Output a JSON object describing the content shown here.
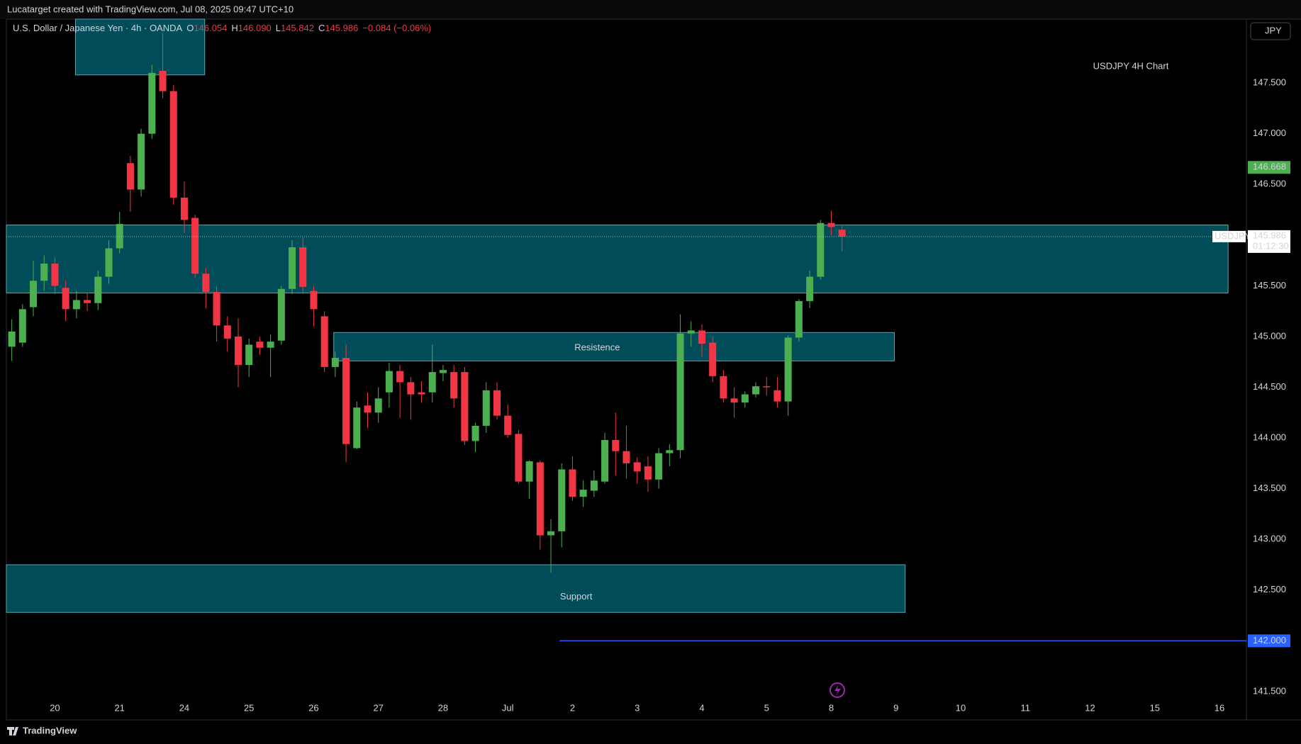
{
  "chart_data": {
    "type": "candlestick",
    "attribution": "Lucatarget created with TradingView.com, Jul 08, 2025 09:47 UTC+10",
    "symbol": "U.S. Dollar / Japanese Yen · 4h · OANDA",
    "ohlc_header": [
      {
        "key": "O",
        "value": "146.054"
      },
      {
        "key": "H",
        "value": "146.090"
      },
      {
        "key": "L",
        "value": "145.842"
      },
      {
        "key": "C",
        "value": "145.986"
      }
    ],
    "change": "−0.084 (−0.06%)",
    "currency_button": "JPY",
    "title": "USDJPY 4H Chart",
    "brand": "TradingView",
    "up_color": "#4caf50",
    "down_color": "#f23645",
    "grid": false,
    "categories": [
      null,
      null,
      null,
      null,
      "20",
      null,
      null,
      null,
      null,
      null,
      "21",
      null,
      null,
      null,
      null,
      null,
      "24",
      null,
      null,
      null,
      null,
      null,
      "25",
      null,
      null,
      null,
      null,
      null,
      "26",
      null,
      null,
      null,
      null,
      null,
      "27",
      null,
      null,
      null,
      null,
      null,
      "28",
      null,
      null,
      null,
      null,
      null,
      "Jul",
      null,
      null,
      null,
      null,
      null,
      "2",
      null,
      null,
      null,
      null,
      null,
      "3",
      null,
      null,
      null,
      null,
      null,
      "4",
      null,
      null,
      null,
      null,
      null,
      "5",
      null,
      null,
      null,
      null,
      null,
      "8",
      null,
      null,
      null,
      null,
      null,
      "9",
      null,
      null,
      null,
      null,
      null,
      "10",
      null,
      null,
      null,
      null,
      null,
      "11",
      null,
      null,
      null,
      null,
      null,
      "12",
      null,
      null,
      null,
      null,
      null,
      "15",
      null,
      null,
      null,
      null,
      null,
      "16",
      null,
      null
    ],
    "open": [
      144.9,
      144.94,
      145.29,
      145.55,
      145.72,
      145.48,
      145.27,
      145.36,
      145.33,
      145.59,
      145.87,
      146.71,
      146.45,
      147.0,
      147.62,
      147.42,
      146.37,
      146.17,
      145.62,
      145.44,
      145.11,
      145.0,
      144.72,
      144.95,
      144.89,
      144.96,
      145.47,
      145.88,
      145.45,
      145.2,
      144.7,
      144.79,
      143.9,
      144.32,
      144.25,
      144.45,
      144.66,
      144.55,
      144.45,
      144.45,
      144.64,
      144.65,
      144.65,
      143.97,
      144.12,
      144.47,
      144.22,
      144.04,
      143.57,
      143.76,
      143.04,
      143.08,
      143.69,
      143.42,
      143.48,
      143.57,
      143.98,
      143.87,
      143.76,
      143.72,
      143.59,
      143.85,
      143.88,
      145.03,
      145.06,
      144.94,
      144.61,
      144.39,
      144.35,
      144.43,
      144.51,
      144.47,
      144.36,
      144.99,
      145.35,
      145.59,
      146.12,
      146.054,
      null,
      null,
      null,
      null,
      null,
      null,
      null,
      null,
      null,
      null,
      null,
      null,
      null,
      null,
      null,
      null,
      null,
      null,
      null,
      null,
      null,
      null,
      null,
      null,
      null,
      null,
      null,
      null,
      null,
      null,
      null,
      null,
      null,
      null,
      null,
      null,
      null
    ],
    "high": [
      145.17,
      145.32,
      145.75,
      145.8,
      145.78,
      145.55,
      145.45,
      145.43,
      145.65,
      145.95,
      146.23,
      146.78,
      147.05,
      147.68,
      147.99,
      147.48,
      146.53,
      146.2,
      145.68,
      145.5,
      145.2,
      145.18,
      144.98,
      145.0,
      145.02,
      145.5,
      145.95,
      145.98,
      145.5,
      145.25,
      144.85,
      144.92,
      144.36,
      144.45,
      144.5,
      144.74,
      144.72,
      144.6,
      144.56,
      144.92,
      144.72,
      144.72,
      144.7,
      144.15,
      144.55,
      144.55,
      144.33,
      144.08,
      143.78,
      143.78,
      143.2,
      143.75,
      143.82,
      143.58,
      143.68,
      144.05,
      144.25,
      144.12,
      143.81,
      143.82,
      143.9,
      143.94,
      145.22,
      145.15,
      145.12,
      145.0,
      144.67,
      144.5,
      144.46,
      144.55,
      144.6,
      144.6,
      145.01,
      145.37,
      145.65,
      146.15,
      146.24,
      146.09,
      null,
      null,
      null,
      null,
      null,
      null,
      null,
      null,
      null,
      null,
      null,
      null,
      null,
      null,
      null,
      null,
      null,
      null,
      null,
      null,
      null,
      null,
      null,
      null,
      null,
      null,
      null,
      null,
      null,
      null,
      null,
      null,
      null,
      null,
      null,
      null,
      null
    ],
    "low": [
      144.76,
      144.9,
      145.2,
      145.45,
      145.42,
      145.15,
      145.18,
      145.25,
      145.26,
      145.52,
      145.82,
      146.23,
      146.38,
      146.95,
      147.35,
      146.3,
      146.02,
      145.58,
      145.28,
      144.95,
      144.85,
      144.5,
      144.6,
      144.82,
      144.6,
      144.92,
      145.42,
      145.42,
      145.1,
      144.65,
      144.6,
      143.76,
      143.89,
      144.1,
      144.15,
      144.3,
      144.2,
      144.18,
      144.35,
      144.35,
      144.56,
      144.3,
      143.93,
      143.86,
      144.05,
      144.18,
      144.0,
      143.55,
      143.4,
      142.9,
      142.67,
      142.92,
      143.38,
      143.32,
      143.42,
      143.55,
      143.63,
      143.6,
      143.55,
      143.47,
      143.5,
      143.72,
      143.8,
      144.9,
      144.8,
      144.55,
      144.35,
      144.2,
      144.3,
      144.4,
      144.42,
      144.3,
      144.22,
      144.95,
      145.28,
      145.56,
      146.0,
      145.842,
      null,
      null,
      null,
      null,
      null,
      null,
      null,
      null,
      null,
      null,
      null,
      null,
      null,
      null,
      null,
      null,
      null,
      null,
      null,
      null,
      null,
      null,
      null,
      null,
      null,
      null,
      null,
      null,
      null,
      null,
      null,
      null,
      null,
      null,
      null,
      null,
      null
    ],
    "close": [
      145.05,
      145.27,
      145.55,
      145.72,
      145.5,
      145.27,
      145.36,
      145.33,
      145.59,
      145.87,
      146.11,
      146.45,
      147.0,
      147.6,
      147.42,
      146.37,
      146.15,
      145.62,
      145.44,
      145.11,
      144.98,
      144.72,
      144.92,
      144.89,
      144.95,
      145.47,
      145.88,
      145.49,
      145.27,
      144.7,
      144.79,
      143.94,
      144.3,
      144.25,
      144.39,
      144.66,
      144.55,
      144.43,
      144.43,
      144.65,
      144.67,
      144.39,
      143.97,
      144.12,
      144.47,
      144.22,
      144.03,
      143.57,
      143.77,
      143.04,
      143.08,
      143.69,
      143.42,
      143.49,
      143.58,
      143.98,
      143.87,
      143.75,
      143.67,
      143.59,
      143.85,
      143.88,
      145.03,
      145.06,
      144.93,
      144.61,
      144.39,
      144.35,
      144.43,
      144.51,
      144.5,
      144.36,
      144.99,
      145.35,
      145.59,
      146.12,
      146.08,
      145.986,
      null,
      null,
      null,
      null,
      null,
      null,
      null,
      null,
      null,
      null,
      null,
      null,
      null,
      null,
      null,
      null,
      null,
      null,
      null,
      null,
      null,
      null,
      null,
      null,
      null,
      null,
      null,
      null,
      null,
      null,
      null,
      null,
      null,
      null,
      null,
      null,
      null
    ],
    "ylim": [
      141.22,
      148.13
    ],
    "yticks": [
      {
        "value": 141.5,
        "label": "141.500"
      },
      {
        "value": 142.0,
        "label": "142.000"
      },
      {
        "value": 142.5,
        "label": "142.500"
      },
      {
        "value": 143.0,
        "label": "143.000"
      },
      {
        "value": 143.5,
        "label": "143.500"
      },
      {
        "value": 144.0,
        "label": "144.000"
      },
      {
        "value": 144.5,
        "label": "144.500"
      },
      {
        "value": 145.0,
        "label": "145.000"
      },
      {
        "value": 145.5,
        "label": "145.500"
      },
      {
        "value": 146.0,
        "label": "146.000"
      },
      {
        "value": 146.5,
        "label": "146.500"
      },
      {
        "value": 147.0,
        "label": "147.000"
      },
      {
        "value": 147.5,
        "label": "147.500"
      }
    ],
    "zone_color": "#004c58",
    "zones": [
      {
        "x0": 6.41,
        "x1": 18.39,
        "y0": 147.58,
        "y1": 148.13
      },
      {
        "x0": 0,
        "x1": 113.3,
        "y0": 145.43,
        "y1": 146.1
      },
      {
        "x0": 30.36,
        "x1": 82.35,
        "y0": 144.76,
        "y1": 145.04,
        "label": "Resistence"
      },
      {
        "x0": 0,
        "x1": 83.35,
        "y0": 142.28,
        "y1": 142.75,
        "label": "Support"
      }
    ],
    "price_tags": [
      {
        "value": 146.668,
        "label": "146.668",
        "color": "#4caf50"
      },
      {
        "value": 145.986,
        "label": "145.986",
        "symbol": "USDJPY",
        "countdown": "01:12:30",
        "color": "#ffffff"
      },
      {
        "value": 142.0,
        "label": "142.000",
        "color": "#2962ff",
        "line_x0": 51.3
      }
    ]
  }
}
